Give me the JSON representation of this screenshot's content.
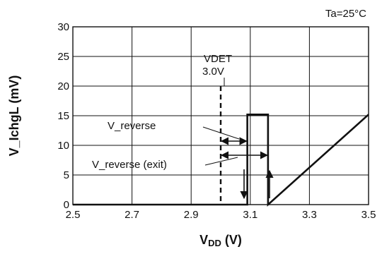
{
  "chart_data": {
    "type": "line",
    "title": "",
    "xlabel_main": "V",
    "xlabel_sub": "DD",
    "xlabel_unit": " (V)",
    "ylabel": "V_IchgL (mV)",
    "xlim": [
      2.5,
      3.5
    ],
    "ylim": [
      0,
      30
    ],
    "x_ticks": [
      "2.5",
      "2.7",
      "2.9",
      "3.1",
      "3.3",
      "3.5"
    ],
    "x_tick_values": [
      2.5,
      2.7,
      2.9,
      3.1,
      3.3,
      3.5
    ],
    "y_ticks": [
      "0",
      "5",
      "10",
      "15",
      "20",
      "25",
      "30"
    ],
    "y_tick_values": [
      0,
      5,
      10,
      15,
      20,
      25,
      30
    ],
    "grid": true,
    "series": [
      {
        "x": [
          2.5,
          3.09,
          3.09,
          3.16,
          3.16,
          3.5
        ],
        "values": [
          0.0,
          0.0,
          15.2,
          15.2,
          0.0,
          15.2
        ]
      }
    ],
    "annotations": {
      "condition": "Ta=25°C",
      "vdet_label": "VDET",
      "vdet_value": "3.0V",
      "vdet_x": 3.0,
      "reverse_label": "V_reverse",
      "reverse_exit_label": "V_reverse (exit)",
      "reverse_range": [
        3.0,
        3.09
      ],
      "reverse_exit_range": [
        3.0,
        3.16
      ]
    }
  }
}
